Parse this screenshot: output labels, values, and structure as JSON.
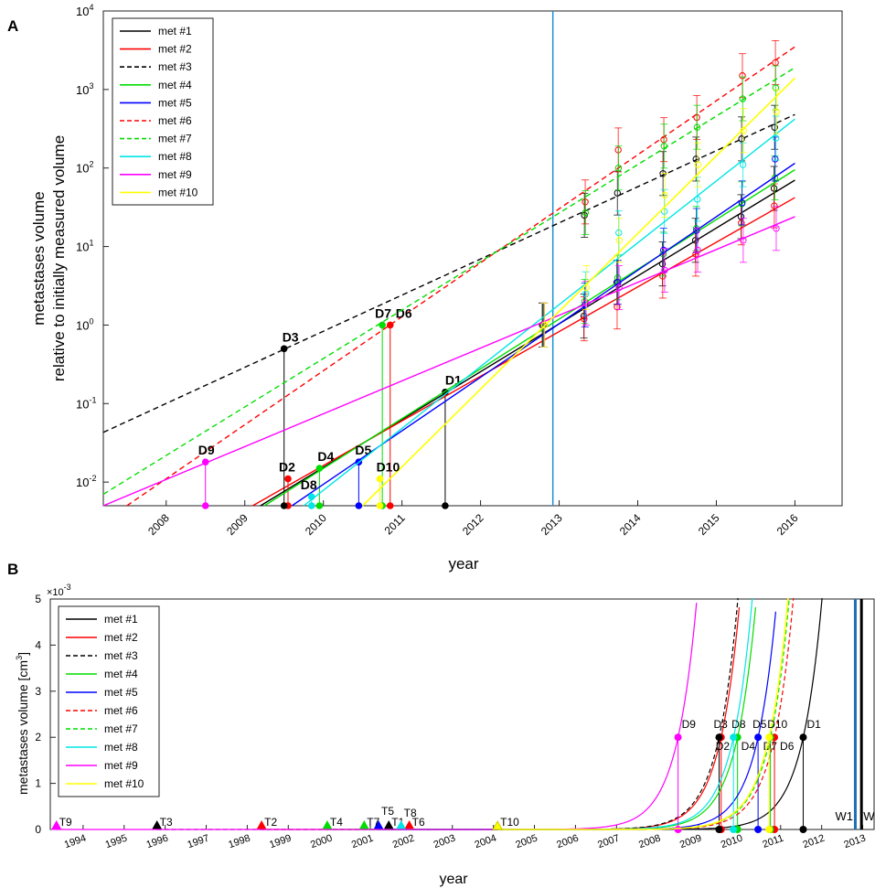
{
  "chart_data": [
    {
      "panel": "A",
      "type": "line",
      "yscale": "log",
      "xlabel": "year",
      "ylabel_line1": "metastases volume",
      "ylabel_line2": "relative to initially measured volume",
      "xlim": [
        2007.2,
        2016.6
      ],
      "ylim": [
        0.005,
        10000
      ],
      "xticks": [
        "2008",
        "2009",
        "2010",
        "2011",
        "2012",
        "2013",
        "2014",
        "2015",
        "2016"
      ],
      "yticks": [
        {
          "base": "10",
          "exp": "-2",
          "v": 0.01
        },
        {
          "base": "10",
          "exp": "-1",
          "v": 0.1
        },
        {
          "base": "10",
          "exp": "0",
          "v": 1
        },
        {
          "base": "10",
          "exp": "1",
          "v": 10
        },
        {
          "base": "10",
          "exp": "2",
          "v": 100
        },
        {
          "base": "10",
          "exp": "3",
          "v": 1000
        },
        {
          "base": "10",
          "exp": "4",
          "v": 10000
        }
      ],
      "vline_x": 2012.92,
      "vline_color": "#1e90d6",
      "legend": [
        "met #1",
        "met #2",
        "met #3",
        "met #4",
        "met #5",
        "met #6",
        "met #7",
        "met #8",
        "met #9",
        "met #10"
      ],
      "obs_x": [
        2012.8,
        2013.33,
        2013.75,
        2014.33,
        2014.75,
        2015.33,
        2015.75
      ],
      "series": [
        {
          "name": "met #1",
          "color": "#000000",
          "dash": false,
          "line": [
            [
              2009.2,
              0.005
            ],
            [
              2016.0,
              70
            ]
          ],
          "diag": "D1",
          "dx": 2011.55,
          "dy": 0.14,
          "obs": [
            1.0,
            1.3,
            3.5,
            6,
            12,
            24,
            55
          ]
        },
        {
          "name": "met #2",
          "color": "#ff0000",
          "dash": false,
          "line": [
            [
              2009.1,
              0.005
            ],
            [
              2016.0,
              42
            ]
          ],
          "diag": "D2",
          "dx": 2009.55,
          "dy": 0.011,
          "obs": [
            1.0,
            1.2,
            1.7,
            4.2,
            8,
            20,
            33
          ]
        },
        {
          "name": "met #3",
          "color": "#000000",
          "dash": true,
          "line": [
            [
              2007.2,
              0.043
            ],
            [
              2016.0,
              480
            ]
          ],
          "diag": "D3",
          "dx": 2009.5,
          "dy": 0.5,
          "obs": [
            1.0,
            25,
            48,
            85,
            130,
            235,
            330
          ]
        },
        {
          "name": "met #4",
          "color": "#00dd00",
          "dash": false,
          "line": [
            [
              2009.25,
              0.005
            ],
            [
              2016.0,
              95
            ]
          ],
          "diag": "D4",
          "dx": 2009.95,
          "dy": 0.015,
          "obs": [
            1.0,
            2.0,
            4,
            8,
            17,
            35,
            75
          ]
        },
        {
          "name": "met #5",
          "color": "#0000ff",
          "dash": false,
          "line": [
            [
              2009.6,
              0.005
            ],
            [
              2016.0,
              115
            ]
          ],
          "diag": "D5",
          "dx": 2010.45,
          "dy": 0.018,
          "obs": [
            1.0,
            1.8,
            3.5,
            9,
            16,
            36,
            130
          ]
        },
        {
          "name": "met #6",
          "color": "#ff0000",
          "dash": true,
          "line": [
            [
              2007.5,
              0.005
            ],
            [
              2016.0,
              3500
            ]
          ],
          "diag": "D6",
          "dx": 2010.85,
          "dy": 1.0,
          "obs": [
            1.0,
            37,
            170,
            230,
            440,
            1500,
            2200
          ]
        },
        {
          "name": "met #7",
          "color": "#00dd00",
          "dash": true,
          "line": [
            [
              2007.2,
              0.007
            ],
            [
              2016.0,
              1900
            ]
          ],
          "diag": "D7",
          "dx": 2010.75,
          "dy": 1.0,
          "obs": [
            1.0,
            27,
            100,
            190,
            330,
            760,
            1050
          ]
        },
        {
          "name": "met #8",
          "color": "#00e5e5",
          "dash": false,
          "line": [
            [
              2009.75,
              0.005
            ],
            [
              2016.0,
              420
            ]
          ],
          "diag": "D8",
          "dx": 2009.85,
          "dy": 0.0065,
          "obs": [
            1.0,
            2.5,
            15,
            28,
            40,
            110,
            240
          ]
        },
        {
          "name": "met #9",
          "color": "#ff00ff",
          "dash": false,
          "line": [
            [
              2007.2,
              0.005
            ],
            [
              2016.0,
              24
            ]
          ],
          "diag": "D9",
          "dx": 2008.5,
          "dy": 0.018,
          "obs": [
            1.0,
            1.9,
            3,
            5,
            9,
            12,
            17
          ]
        },
        {
          "name": "met #10",
          "color": "#ffff00",
          "dash": false,
          "line": [
            [
              2010.5,
              0.005
            ],
            [
              2016.0,
              1400
            ]
          ],
          "diag": "D10",
          "dx": 2010.72,
          "dy": 0.011,
          "obs": [
            1.0,
            3,
            12,
            45,
            110,
            300,
            520
          ]
        }
      ]
    },
    {
      "panel": "B",
      "type": "line",
      "xlabel": "year",
      "ylabel": "metastases volume [cm",
      "ylabel_sup": "3",
      "ylabel_close": "]",
      "exponent_label": "×10",
      "exponent_sup": "-3",
      "xlim": [
        1993.2,
        2013.3
      ],
      "ylim": [
        0,
        5
      ],
      "xticks": [
        "1994",
        "1995",
        "1996",
        "1997",
        "1998",
        "1999",
        "2000",
        "2001",
        "2002",
        "2003",
        "2004",
        "2005",
        "2006",
        "2007",
        "2008",
        "2009",
        "2010",
        "2011",
        "2012",
        "2013"
      ],
      "yticks": [
        "0",
        "1",
        "2",
        "3",
        "4",
        "5"
      ],
      "legend": [
        "met #1",
        "met #2",
        "met #3",
        "met #4",
        "met #5",
        "met #6",
        "met #7",
        "met #8",
        "met #9",
        "met #10"
      ],
      "vlines": [
        {
          "x": 2012.82,
          "color": "#1e6fb8",
          "label": "W1"
        },
        {
          "x": 2012.97,
          "color": "#000000",
          "label": "WR"
        }
      ],
      "series": [
        {
          "name": "met #1",
          "color": "#000000",
          "dash": false,
          "T": "T1",
          "tx": 2001.45,
          "diag": "D1",
          "dx": 2011.55,
          "dlabel_side": "above"
        },
        {
          "name": "met #2",
          "color": "#ff0000",
          "dash": false,
          "T": "T2",
          "tx": 1998.35,
          "diag": "D2",
          "dx": 2009.55,
          "dlabel_side": "below"
        },
        {
          "name": "met #3",
          "color": "#000000",
          "dash": true,
          "T": "T3",
          "tx": 1995.8,
          "diag": "D3",
          "dx": 2009.5,
          "dlabel_side": "above"
        },
        {
          "name": "met #4",
          "color": "#00dd00",
          "dash": false,
          "T": "T4",
          "tx": 1999.95,
          "diag": "D4",
          "dx": 2009.95,
          "dlabel_side": "below"
        },
        {
          "name": "met #5",
          "color": "#0000ff",
          "dash": false,
          "T": "T5",
          "tx": 2001.2,
          "diag": "D5",
          "dx": 2010.45,
          "dlabel_side": "above"
        },
        {
          "name": "met #6",
          "color": "#ff0000",
          "dash": true,
          "T": "T6",
          "tx": 2001.95,
          "diag": "D6",
          "dx": 2010.85,
          "dlabel_side": "below"
        },
        {
          "name": "met #7",
          "color": "#00dd00",
          "dash": true,
          "T": "T7",
          "tx": 2000.85,
          "diag": "D7",
          "dx": 2010.75,
          "dlabel_side": "below"
        },
        {
          "name": "met #8",
          "color": "#00e5e5",
          "dash": false,
          "T": "T8",
          "tx": 2001.75,
          "diag": "D8",
          "dx": 2009.85,
          "dlabel_side": "above"
        },
        {
          "name": "met #9",
          "color": "#ff00ff",
          "dash": false,
          "T": "T9",
          "tx": 1993.35,
          "diag": "D9",
          "dx": 2008.5,
          "dlabel_side": "above"
        },
        {
          "name": "met #10",
          "color": "#ffff00",
          "dash": false,
          "T": "T10",
          "tx": 2004.1,
          "diag": "D10",
          "dx": 2010.72,
          "dlabel_side": "above"
        }
      ]
    }
  ],
  "panel_labels": [
    "A",
    "B"
  ]
}
